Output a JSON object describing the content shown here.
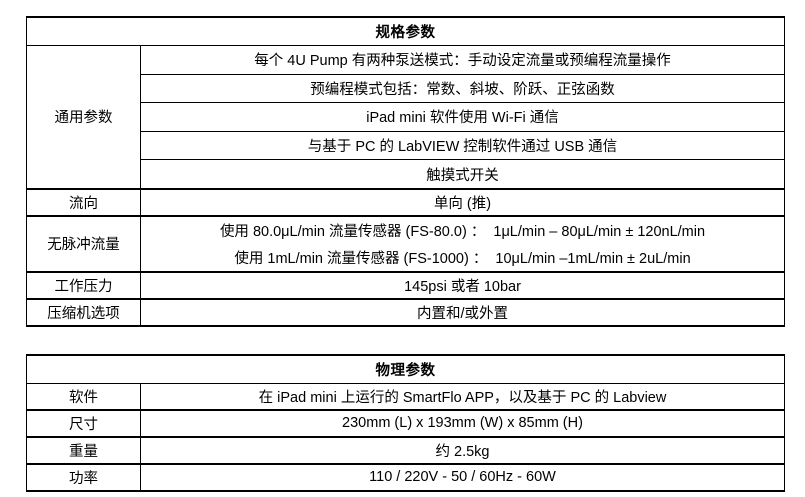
{
  "tables": [
    {
      "name": "spec-params-table",
      "title": "规格参数",
      "rows": [
        {
          "label": "通用参数",
          "divided": true,
          "lines": [
            "每个 4U Pump 有两种泵送模式：手动设定流量或预编程流量操作",
            "预编程模式包括：常数、斜坡、阶跃、正弦函数",
            "iPad mini 软件使用 Wi-Fi 通信",
            "与基于 PC 的 LabVIEW 控制软件通过 USB 通信",
            "触摸式开关"
          ]
        },
        {
          "label": "流向",
          "divided": false,
          "lines": [
            "单向 (推)"
          ]
        },
        {
          "label": "无脉冲流量",
          "divided": false,
          "stacked": true,
          "lines": [
            "使用 80.0μL/min 流量传感器 (FS-80.0) ：  1μL/min – 80μL/min ± 120nL/min",
            "使用 1mL/min 流量传感器 (FS-1000) ：  10μL/min –1mL/min ± 2uL/min"
          ]
        },
        {
          "label": "工作压力",
          "divided": false,
          "lines": [
            "145psi 或者 10bar"
          ]
        },
        {
          "label": "压缩机选项",
          "divided": false,
          "lines": [
            "内置和/或外置"
          ]
        }
      ]
    },
    {
      "name": "physical-params-table",
      "title": "物理参数",
      "rows": [
        {
          "label": "软件",
          "divided": false,
          "lines": [
            "在 iPad mini 上运行的 SmartFlo APP，以及基于 PC 的 Labview"
          ]
        },
        {
          "label": "尺寸",
          "divided": false,
          "lines": [
            "230mm (L) x 193mm (W) x 85mm (H)"
          ]
        },
        {
          "label": "重量",
          "divided": false,
          "lines": [
            "约 2.5kg"
          ]
        },
        {
          "label": "功率",
          "divided": false,
          "lines": [
            "110 / 220V - 50 / 60Hz - 60W"
          ]
        }
      ]
    }
  ]
}
